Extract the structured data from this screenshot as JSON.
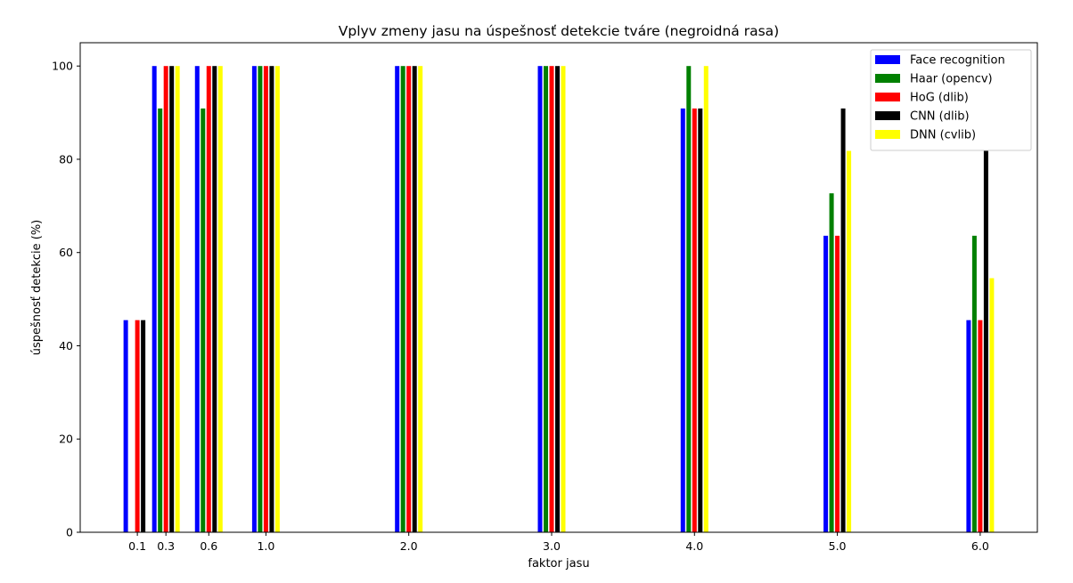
{
  "chart_data": {
    "type": "bar",
    "title": "Vplyv zmeny jasu na úspešnosť detekcie tváre (negroidná rasa)",
    "xlabel": "faktor jasu",
    "ylabel": "úspešnosť detekcie (%)",
    "x": [
      0.1,
      0.3,
      0.6,
      1.0,
      2.0,
      3.0,
      4.0,
      5.0,
      6.0
    ],
    "tick_labels": [
      "0.1",
      "0.3",
      "0.6",
      "1.0",
      "2.0",
      "3.0",
      "4.0",
      "5.0",
      "6.0"
    ],
    "xlim": [
      -0.3,
      6.4
    ],
    "ylim": [
      0,
      105
    ],
    "yticks": [
      0,
      20,
      40,
      60,
      80,
      100
    ],
    "grid": false,
    "legend_position": "top-right",
    "series": [
      {
        "name": "Face recognition",
        "color": "#0000ff",
        "values": [
          45.5,
          100,
          100,
          100,
          100,
          100,
          90.9,
          63.6,
          45.5
        ]
      },
      {
        "name": "Haar (opencv)",
        "color": "#008000",
        "values": [
          0,
          90.9,
          90.9,
          100,
          100,
          100,
          100,
          72.7,
          63.6
        ]
      },
      {
        "name": "HoG (dlib)",
        "color": "#ff0000",
        "values": [
          45.5,
          100,
          100,
          100,
          100,
          100,
          90.9,
          63.6,
          45.5
        ]
      },
      {
        "name": "CNN (dlib)",
        "color": "#000000",
        "values": [
          45.5,
          100,
          100,
          100,
          100,
          100,
          90.9,
          90.9,
          81.8
        ]
      },
      {
        "name": "DNN (cvlib)",
        "color": "#ffff00",
        "values": [
          0,
          100,
          100,
          100,
          100,
          100,
          100,
          81.8,
          54.5
        ]
      }
    ]
  }
}
